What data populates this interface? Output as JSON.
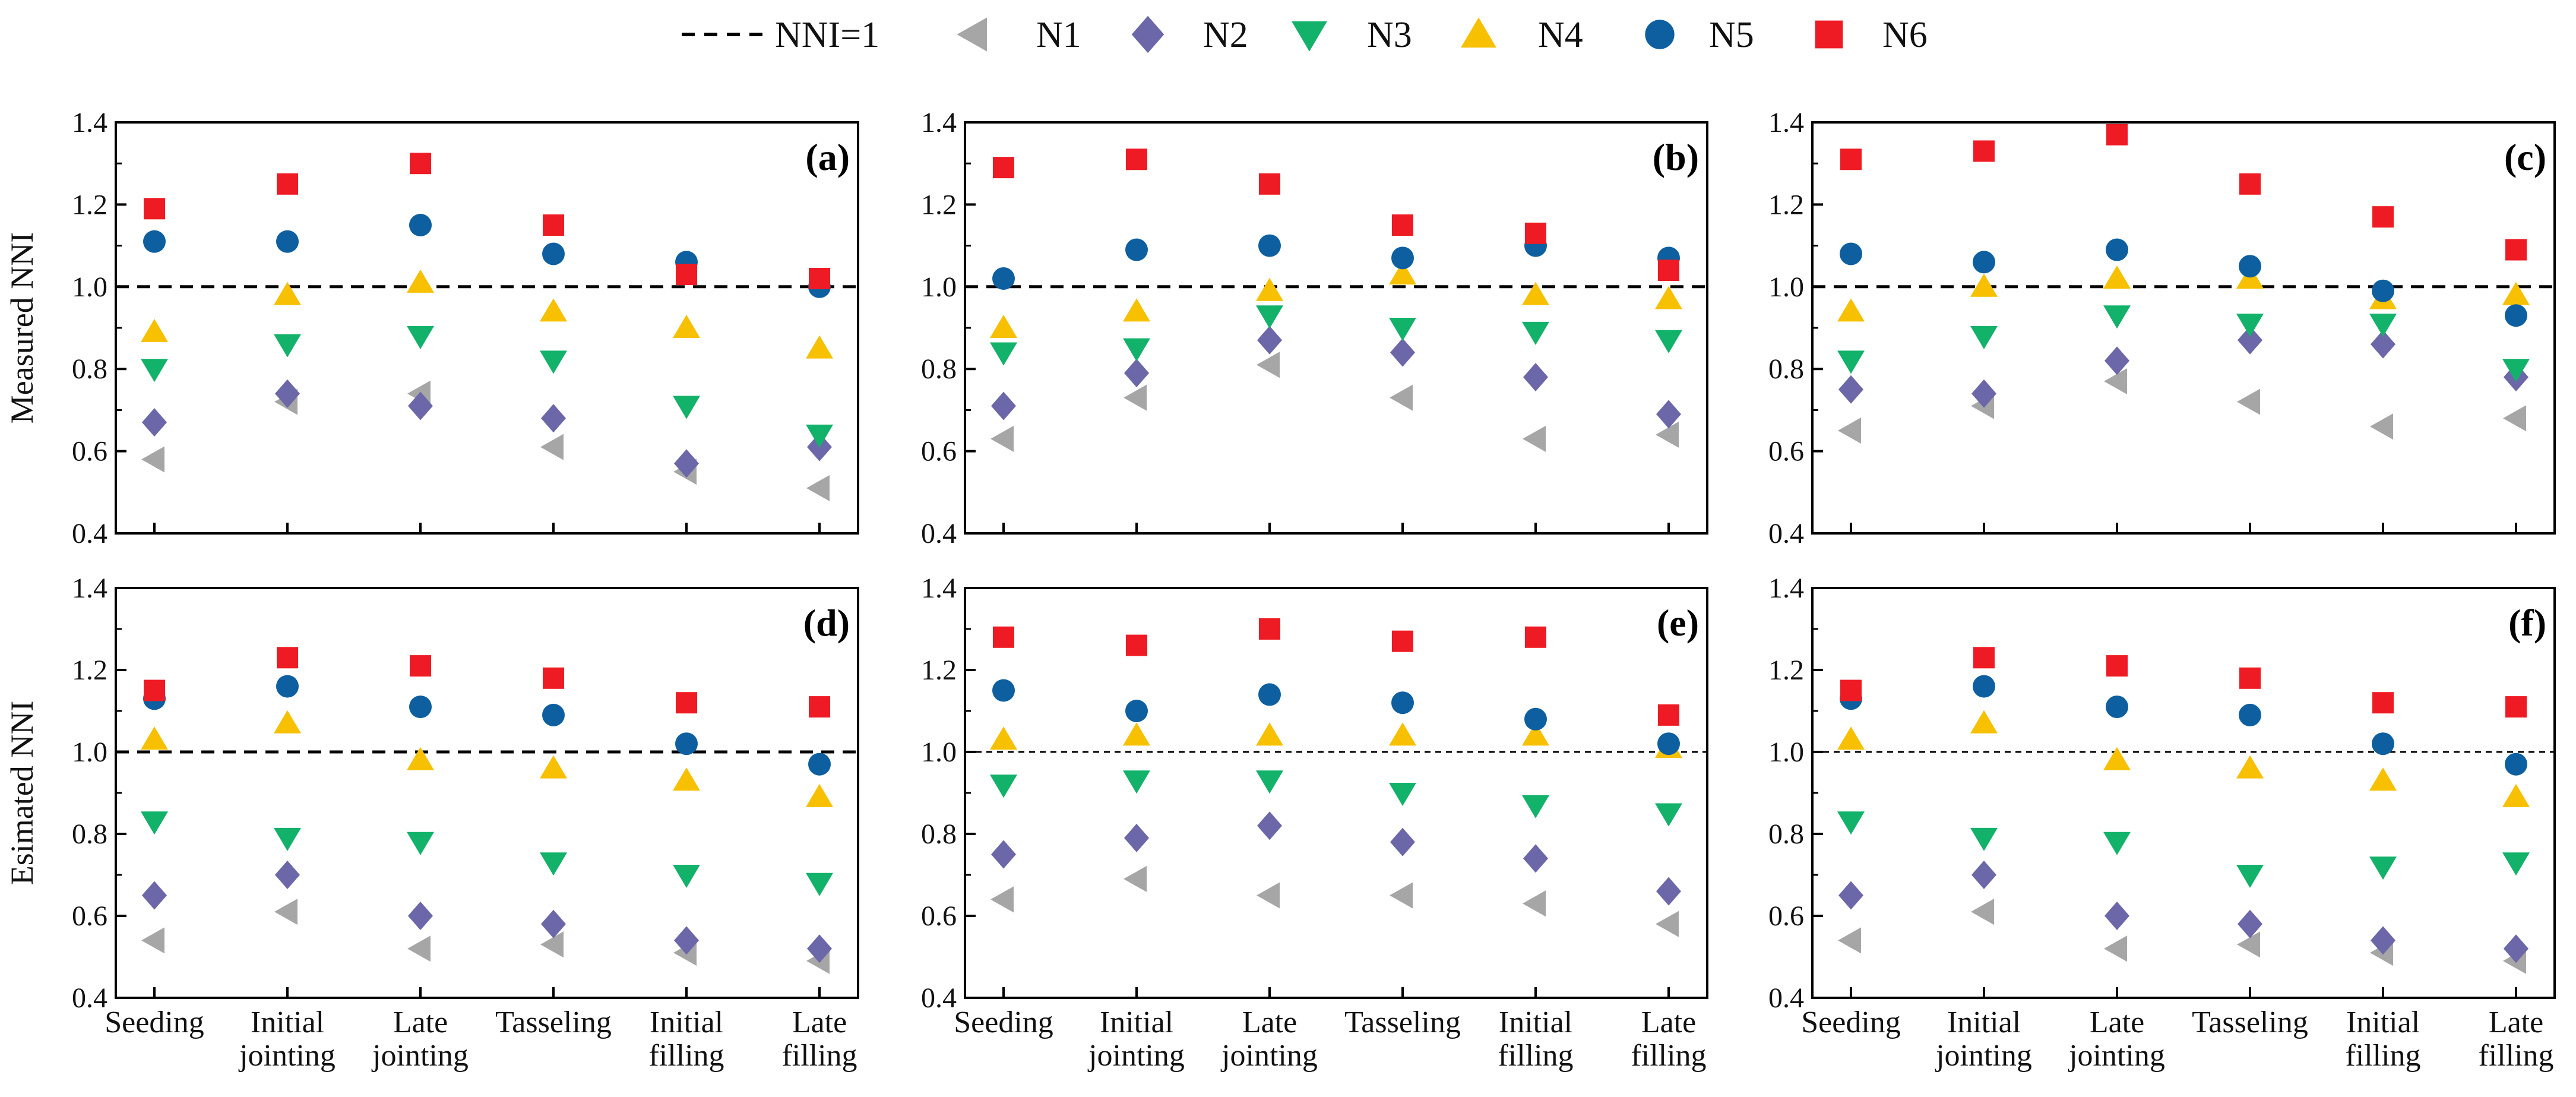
{
  "legend": {
    "ref_label": "NNI=1",
    "items": [
      {
        "name": "N1",
        "marker": "triangle-left",
        "color": "#a6a6a6"
      },
      {
        "name": "N2",
        "marker": "diamond",
        "color": "#6b67a8"
      },
      {
        "name": "N3",
        "marker": "triangle-down",
        "color": "#12b26a"
      },
      {
        "name": "N4",
        "marker": "triangle-up",
        "color": "#f7c000"
      },
      {
        "name": "N5",
        "marker": "circle",
        "color": "#0d5fa0"
      },
      {
        "name": "N6",
        "marker": "square",
        "color": "#ee1b24"
      }
    ]
  },
  "chart_data": [
    {
      "panel": "(a)",
      "type": "scatter",
      "ylabel": "Measured NNI",
      "ylim": [
        0.4,
        1.4
      ],
      "yticks": [
        "0.4",
        "0.6",
        "0.8",
        "1.0",
        "1.2",
        "1.4"
      ],
      "ref_line": 1.0,
      "categories": [],
      "series": [
        {
          "name": "N1",
          "values": [
            0.58,
            0.72,
            0.74,
            0.61,
            0.55,
            0.51
          ]
        },
        {
          "name": "N2",
          "values": [
            0.67,
            0.74,
            0.71,
            0.68,
            0.57,
            0.61
          ]
        },
        {
          "name": "N3",
          "values": [
            0.8,
            0.86,
            0.88,
            0.82,
            0.71,
            0.64
          ]
        },
        {
          "name": "N4",
          "values": [
            0.89,
            0.98,
            1.01,
            0.94,
            0.9,
            0.85
          ]
        },
        {
          "name": "N5",
          "values": [
            1.11,
            1.11,
            1.15,
            1.08,
            1.06,
            1.0
          ]
        },
        {
          "name": "N6",
          "values": [
            1.19,
            1.25,
            1.3,
            1.15,
            1.03,
            1.02
          ]
        }
      ]
    },
    {
      "panel": "(b)",
      "type": "scatter",
      "ylabel": "",
      "ylim": [
        0.4,
        1.4
      ],
      "yticks": [
        "0.4",
        "0.6",
        "0.8",
        "1.0",
        "1.2",
        "1.4"
      ],
      "ref_line": 1.0,
      "categories": [],
      "series": [
        {
          "name": "N1",
          "values": [
            0.63,
            0.73,
            0.81,
            0.73,
            0.63,
            0.64
          ]
        },
        {
          "name": "N2",
          "values": [
            0.71,
            0.79,
            0.87,
            0.84,
            0.78,
            0.69
          ]
        },
        {
          "name": "N3",
          "values": [
            0.84,
            0.85,
            0.93,
            0.9,
            0.89,
            0.87
          ]
        },
        {
          "name": "N4",
          "values": [
            0.9,
            0.94,
            0.99,
            1.03,
            0.98,
            0.97
          ]
        },
        {
          "name": "N5",
          "values": [
            1.02,
            1.09,
            1.1,
            1.07,
            1.1,
            1.07
          ]
        },
        {
          "name": "N6",
          "values": [
            1.29,
            1.31,
            1.25,
            1.15,
            1.13,
            1.04
          ]
        }
      ]
    },
    {
      "panel": "(c)",
      "type": "scatter",
      "ylabel": "",
      "ylim": [
        0.4,
        1.4
      ],
      "yticks": [
        "0.4",
        "0.6",
        "0.8",
        "1.0",
        "1.2",
        "1.4"
      ],
      "ref_line": 1.0,
      "categories": [],
      "series": [
        {
          "name": "N1",
          "values": [
            0.65,
            0.71,
            0.77,
            0.72,
            0.66,
            0.68
          ]
        },
        {
          "name": "N2",
          "values": [
            0.75,
            0.74,
            0.82,
            0.87,
            0.86,
            0.78
          ]
        },
        {
          "name": "N3",
          "values": [
            0.82,
            0.88,
            0.93,
            0.91,
            0.91,
            0.8
          ]
        },
        {
          "name": "N4",
          "values": [
            0.94,
            1.0,
            1.02,
            1.02,
            0.97,
            0.98
          ]
        },
        {
          "name": "N5",
          "values": [
            1.08,
            1.06,
            1.09,
            1.05,
            0.99,
            0.93
          ]
        },
        {
          "name": "N6",
          "values": [
            1.31,
            1.33,
            1.37,
            1.25,
            1.17,
            1.09
          ]
        }
      ]
    },
    {
      "panel": "(d)",
      "type": "scatter",
      "ylabel": "Esimated NNI",
      "ylim": [
        0.4,
        1.4
      ],
      "yticks": [
        "0.4",
        "0.6",
        "0.8",
        "1.0",
        "1.2",
        "1.4"
      ],
      "ref_line": 1.0,
      "categories": [
        [
          "Seeding"
        ],
        [
          "Initial",
          "jointing"
        ],
        [
          "Late",
          "jointing"
        ],
        [
          "Tasseling"
        ],
        [
          "Initial",
          "filling"
        ],
        [
          "Late",
          "filling"
        ]
      ],
      "series": [
        {
          "name": "N1",
          "values": [
            0.54,
            0.61,
            0.52,
            0.53,
            0.51,
            0.49
          ]
        },
        {
          "name": "N2",
          "values": [
            0.65,
            0.7,
            0.6,
            0.58,
            0.54,
            0.52
          ]
        },
        {
          "name": "N3",
          "values": [
            0.83,
            0.79,
            0.78,
            0.73,
            0.7,
            0.68
          ]
        },
        {
          "name": "N4",
          "values": [
            1.03,
            1.07,
            0.98,
            0.96,
            0.93,
            0.89
          ]
        },
        {
          "name": "N5",
          "values": [
            1.13,
            1.16,
            1.11,
            1.09,
            1.02,
            0.97
          ]
        },
        {
          "name": "N6",
          "values": [
            1.15,
            1.23,
            1.21,
            1.18,
            1.12,
            1.11
          ]
        }
      ]
    },
    {
      "panel": "(e)",
      "type": "scatter",
      "ylabel": "",
      "ylim": [
        0.4,
        1.4
      ],
      "yticks": [
        "0.4",
        "0.6",
        "0.8",
        "1.0",
        "1.2",
        "1.4"
      ],
      "ref_line": 1.0,
      "categories": [
        [
          "Seeding"
        ],
        [
          "Initial",
          "jointing"
        ],
        [
          "Late",
          "jointing"
        ],
        [
          "Tasseling"
        ],
        [
          "Initial",
          "filling"
        ],
        [
          "Late",
          "filling"
        ]
      ],
      "series": [
        {
          "name": "N1",
          "values": [
            0.64,
            0.69,
            0.65,
            0.65,
            0.63,
            0.58
          ]
        },
        {
          "name": "N2",
          "values": [
            0.75,
            0.79,
            0.82,
            0.78,
            0.74,
            0.66
          ]
        },
        {
          "name": "N3",
          "values": [
            0.92,
            0.93,
            0.93,
            0.9,
            0.87,
            0.85
          ]
        },
        {
          "name": "N4",
          "values": [
            1.03,
            1.04,
            1.04,
            1.04,
            1.04,
            1.01
          ]
        },
        {
          "name": "N5",
          "values": [
            1.15,
            1.1,
            1.14,
            1.12,
            1.08,
            1.02
          ]
        },
        {
          "name": "N6",
          "values": [
            1.28,
            1.26,
            1.3,
            1.27,
            1.28,
            1.09
          ]
        }
      ]
    },
    {
      "panel": "(f)",
      "type": "scatter",
      "ylabel": "",
      "ylim": [
        0.4,
        1.4
      ],
      "yticks": [
        "0.4",
        "0.6",
        "0.8",
        "1.0",
        "1.2",
        "1.4"
      ],
      "ref_line": 1.0,
      "categories": [
        [
          "Seeding"
        ],
        [
          "Initial",
          "jointing"
        ],
        [
          "Late",
          "jointing"
        ],
        [
          "Tasseling"
        ],
        [
          "Initial",
          "filling"
        ],
        [
          "Late",
          "filling"
        ]
      ],
      "series": [
        {
          "name": "N1",
          "values": [
            0.54,
            0.61,
            0.52,
            0.53,
            0.51,
            0.49
          ]
        },
        {
          "name": "N2",
          "values": [
            0.65,
            0.7,
            0.6,
            0.58,
            0.54,
            0.52
          ]
        },
        {
          "name": "N3",
          "values": [
            0.83,
            0.79,
            0.78,
            0.7,
            0.72,
            0.73
          ]
        },
        {
          "name": "N4",
          "values": [
            1.03,
            1.07,
            0.98,
            0.96,
            0.93,
            0.89
          ]
        },
        {
          "name": "N5",
          "values": [
            1.13,
            1.16,
            1.11,
            1.09,
            1.02,
            0.97
          ]
        },
        {
          "name": "N6",
          "values": [
            1.15,
            1.23,
            1.21,
            1.18,
            1.12,
            1.11
          ]
        }
      ]
    }
  ]
}
